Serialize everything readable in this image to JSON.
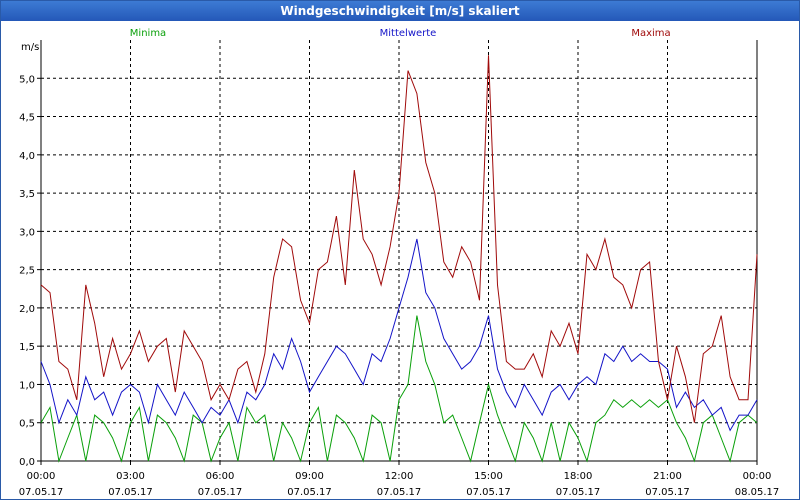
{
  "chart_data": {
    "type": "line",
    "title": "Windgeschwindigkeit [m/s] skaliert",
    "ylabel": "m/s",
    "xlabel": "",
    "ylim": [
      0,
      5.5
    ],
    "xlim": [
      0,
      24
    ],
    "y_ticks": [
      0.0,
      0.5,
      1.0,
      1.5,
      2.0,
      2.5,
      3.0,
      3.5,
      4.0,
      4.5,
      5.0
    ],
    "y_tick_labels": [
      "0,0",
      "0,5",
      "1,0",
      "1,5",
      "2,0",
      "2,5",
      "3,0",
      "3,5",
      "4,0",
      "4,5",
      "5,0"
    ],
    "x_ticks": [
      0,
      3,
      6,
      9,
      12,
      15,
      18,
      21,
      24
    ],
    "x_tick_labels": [
      {
        "time": "00:00",
        "date": "07.05.17"
      },
      {
        "time": "03:00",
        "date": "07.05.17"
      },
      {
        "time": "06:00",
        "date": "07.05.17"
      },
      {
        "time": "09:00",
        "date": "07.05.17"
      },
      {
        "time": "12:00",
        "date": "07.05.17"
      },
      {
        "time": "15:00",
        "date": "07.05.17"
      },
      {
        "time": "18:00",
        "date": "07.05.17"
      },
      {
        "time": "21:00",
        "date": "07.05.17"
      },
      {
        "time": "00:00",
        "date": "08.05.17"
      }
    ],
    "grid": true,
    "legend_position": "top",
    "series": [
      {
        "name": "Minima",
        "color": "#0aa00a",
        "x": [
          0,
          0.3,
          0.6,
          0.9,
          1.2,
          1.5,
          1.8,
          2.1,
          2.4,
          2.7,
          3.0,
          3.3,
          3.6,
          3.9,
          4.2,
          4.5,
          4.8,
          5.1,
          5.4,
          5.7,
          6.0,
          6.3,
          6.6,
          6.9,
          7.2,
          7.5,
          7.8,
          8.1,
          8.4,
          8.7,
          9.0,
          9.3,
          9.6,
          9.9,
          10.2,
          10.5,
          10.8,
          11.1,
          11.4,
          11.7,
          12.0,
          12.3,
          12.6,
          12.9,
          13.2,
          13.5,
          13.8,
          14.1,
          14.4,
          14.7,
          15.0,
          15.3,
          15.6,
          15.9,
          16.2,
          16.5,
          16.8,
          17.1,
          17.4,
          17.7,
          18.0,
          18.3,
          18.6,
          18.9,
          19.2,
          19.5,
          19.8,
          20.1,
          20.4,
          20.7,
          21.0,
          21.3,
          21.6,
          21.9,
          22.2,
          22.5,
          22.8,
          23.1,
          23.4,
          23.7,
          24.0
        ],
        "values": [
          0.5,
          0.7,
          0.0,
          0.3,
          0.6,
          0.0,
          0.6,
          0.5,
          0.3,
          0.0,
          0.5,
          0.7,
          0.0,
          0.6,
          0.5,
          0.3,
          0.0,
          0.6,
          0.5,
          0.0,
          0.3,
          0.5,
          0.0,
          0.7,
          0.5,
          0.6,
          0.0,
          0.5,
          0.3,
          0.0,
          0.5,
          0.7,
          0.0,
          0.6,
          0.5,
          0.3,
          0.0,
          0.6,
          0.5,
          0.0,
          0.8,
          1.0,
          1.9,
          1.3,
          1.0,
          0.5,
          0.6,
          0.3,
          0.0,
          0.5,
          1.0,
          0.6,
          0.3,
          0.0,
          0.5,
          0.3,
          0.0,
          0.5,
          0.0,
          0.5,
          0.3,
          0.0,
          0.5,
          0.6,
          0.8,
          0.7,
          0.8,
          0.7,
          0.8,
          0.7,
          0.8,
          0.5,
          0.3,
          0.0,
          0.5,
          0.6,
          0.3,
          0.0,
          0.5,
          0.6,
          0.5
        ]
      },
      {
        "name": "Mittelwerte",
        "color": "#1414c8",
        "x": [
          0,
          0.3,
          0.6,
          0.9,
          1.2,
          1.5,
          1.8,
          2.1,
          2.4,
          2.7,
          3.0,
          3.3,
          3.6,
          3.9,
          4.2,
          4.5,
          4.8,
          5.1,
          5.4,
          5.7,
          6.0,
          6.3,
          6.6,
          6.9,
          7.2,
          7.5,
          7.8,
          8.1,
          8.4,
          8.7,
          9.0,
          9.3,
          9.6,
          9.9,
          10.2,
          10.5,
          10.8,
          11.1,
          11.4,
          11.7,
          12.0,
          12.3,
          12.6,
          12.9,
          13.2,
          13.5,
          13.8,
          14.1,
          14.4,
          14.7,
          15.0,
          15.3,
          15.6,
          15.9,
          16.2,
          16.5,
          16.8,
          17.1,
          17.4,
          17.7,
          18.0,
          18.3,
          18.6,
          18.9,
          19.2,
          19.5,
          19.8,
          20.1,
          20.4,
          20.7,
          21.0,
          21.3,
          21.6,
          21.9,
          22.2,
          22.5,
          22.8,
          23.1,
          23.4,
          23.7,
          24.0
        ],
        "values": [
          1.3,
          1.0,
          0.5,
          0.8,
          0.6,
          1.1,
          0.8,
          0.9,
          0.6,
          0.9,
          1.0,
          0.9,
          0.5,
          1.0,
          0.8,
          0.6,
          0.9,
          0.7,
          0.5,
          0.7,
          0.6,
          0.8,
          0.5,
          0.9,
          0.8,
          1.0,
          1.4,
          1.2,
          1.6,
          1.3,
          0.9,
          1.1,
          1.3,
          1.5,
          1.4,
          1.2,
          1.0,
          1.4,
          1.3,
          1.6,
          2.0,
          2.4,
          2.9,
          2.2,
          2.0,
          1.6,
          1.4,
          1.2,
          1.3,
          1.5,
          1.9,
          1.2,
          0.9,
          0.7,
          1.0,
          0.8,
          0.6,
          0.9,
          1.0,
          0.8,
          1.0,
          1.1,
          1.0,
          1.4,
          1.3,
          1.5,
          1.3,
          1.4,
          1.3,
          1.3,
          1.2,
          0.7,
          0.9,
          0.7,
          0.8,
          0.6,
          0.7,
          0.4,
          0.6,
          0.6,
          0.8
        ]
      },
      {
        "name": "Maxima",
        "color": "#a00a0a",
        "x": [
          0,
          0.3,
          0.6,
          0.9,
          1.2,
          1.5,
          1.8,
          2.1,
          2.4,
          2.7,
          3.0,
          3.3,
          3.6,
          3.9,
          4.2,
          4.5,
          4.8,
          5.1,
          5.4,
          5.7,
          6.0,
          6.3,
          6.6,
          6.9,
          7.2,
          7.5,
          7.8,
          8.1,
          8.4,
          8.7,
          9.0,
          9.3,
          9.6,
          9.9,
          10.2,
          10.5,
          10.8,
          11.1,
          11.4,
          11.7,
          12.0,
          12.3,
          12.6,
          12.9,
          13.2,
          13.5,
          13.8,
          14.1,
          14.4,
          14.7,
          15.0,
          15.3,
          15.6,
          15.9,
          16.2,
          16.5,
          16.8,
          17.1,
          17.4,
          17.7,
          18.0,
          18.3,
          18.6,
          18.9,
          19.2,
          19.5,
          19.8,
          20.1,
          20.4,
          20.7,
          21.0,
          21.3,
          21.6,
          21.9,
          22.2,
          22.5,
          22.8,
          23.1,
          23.4,
          23.7,
          24.0
        ],
        "values": [
          2.3,
          2.2,
          1.3,
          1.2,
          0.8,
          2.3,
          1.8,
          1.1,
          1.6,
          1.2,
          1.4,
          1.7,
          1.3,
          1.5,
          1.6,
          0.9,
          1.7,
          1.5,
          1.3,
          0.8,
          1.0,
          0.8,
          1.2,
          1.3,
          0.9,
          1.4,
          2.4,
          2.9,
          2.8,
          2.1,
          1.8,
          2.5,
          2.6,
          3.2,
          2.3,
          3.8,
          2.9,
          2.7,
          2.3,
          2.8,
          3.5,
          5.1,
          4.8,
          3.9,
          3.5,
          2.6,
          2.4,
          2.8,
          2.6,
          2.1,
          5.3,
          2.3,
          1.3,
          1.2,
          1.2,
          1.4,
          1.1,
          1.7,
          1.5,
          1.8,
          1.4,
          2.7,
          2.5,
          2.9,
          2.4,
          2.3,
          2.0,
          2.5,
          2.6,
          1.3,
          0.8,
          1.5,
          1.1,
          0.5,
          1.4,
          1.5,
          1.9,
          1.1,
          0.8,
          0.8,
          2.7
        ]
      }
    ]
  }
}
